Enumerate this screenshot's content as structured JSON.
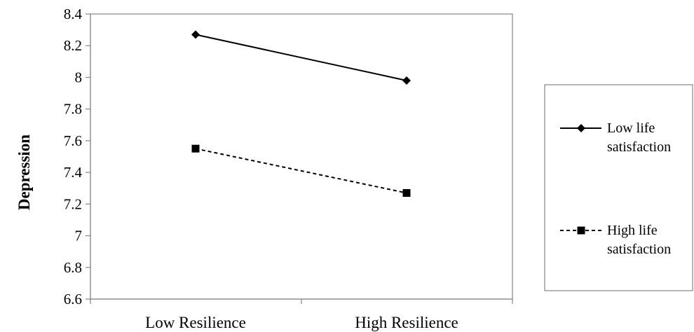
{
  "chart_data": {
    "type": "line",
    "title": "",
    "xlabel": "",
    "ylabel": "Depression",
    "categories": [
      "Low Resilience",
      "High Resilience"
    ],
    "ylim": [
      6.6,
      8.4
    ],
    "yticks": [
      6.6,
      6.8,
      7,
      7.2,
      7.4,
      7.6,
      7.8,
      8,
      8.2,
      8.4
    ],
    "ytick_labels": [
      "6.6",
      "6.8",
      "7",
      "7.2",
      "7.4",
      "7.6",
      "7.8",
      "8",
      "8.2",
      "8.4"
    ],
    "grid": false,
    "legend_position": "right",
    "series": [
      {
        "name": "Low life satisfaction",
        "name_lines": [
          "Low life",
          "satisfaction"
        ],
        "values": [
          8.27,
          7.98
        ],
        "marker": "diamond",
        "line_style": "solid",
        "color": "#000000"
      },
      {
        "name": "High life satisfaction",
        "name_lines": [
          "High life",
          "satisfaction"
        ],
        "values": [
          7.55,
          7.27
        ],
        "marker": "square",
        "line_style": "dashed",
        "color": "#000000"
      }
    ]
  }
}
